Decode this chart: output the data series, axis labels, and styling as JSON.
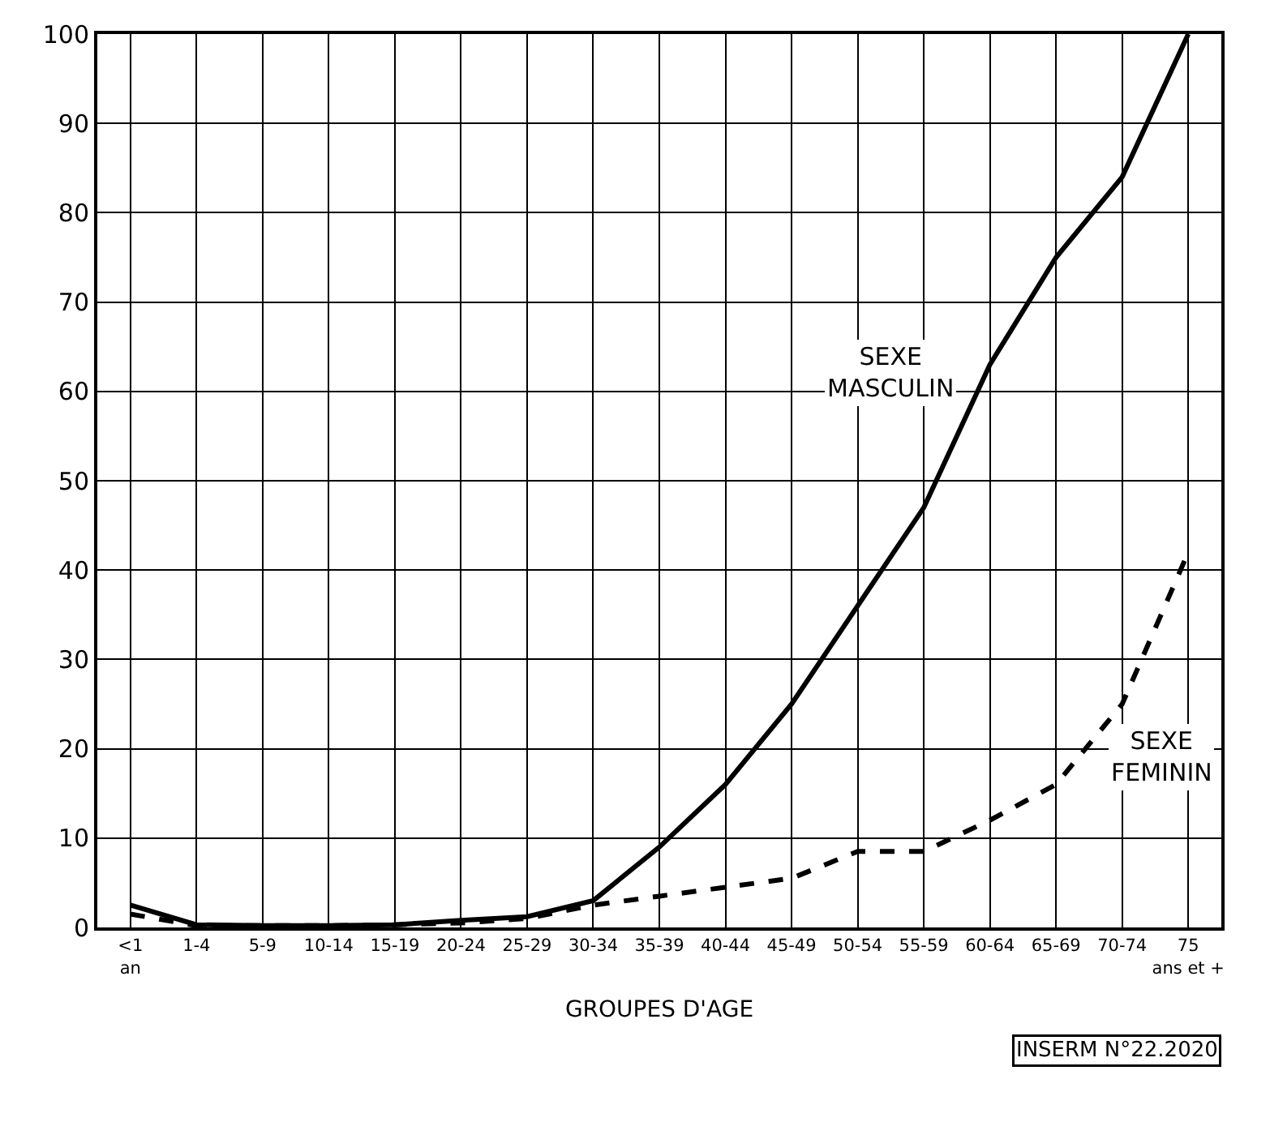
{
  "chart_data": {
    "type": "line",
    "xlabel": "GROUPES D'AGE",
    "categories": [
      "<1 an",
      "1-4",
      "5-9",
      "10-14",
      "15-19",
      "20-24",
      "25-29",
      "30-34",
      "35-39",
      "40-44",
      "45-49",
      "50-54",
      "55-59",
      "60-64",
      "65-69",
      "70-74",
      "75 ans et +"
    ],
    "series": [
      {
        "name": "SEXE MASCULIN",
        "color": "#000000",
        "line_style": "solid",
        "values": [
          2.5,
          0.3,
          0.2,
          0.2,
          0.3,
          0.8,
          1.2,
          3,
          9,
          16,
          25,
          36,
          47,
          63,
          75,
          84,
          100
        ]
      },
      {
        "name": "SEXE FEMININ",
        "color": "#000000",
        "line_style": "dashed",
        "values": [
          1.5,
          0.2,
          0.2,
          0.2,
          0.3,
          0.5,
          1,
          2.5,
          3.5,
          4.5,
          5.5,
          8.5,
          8.5,
          12,
          16,
          25,
          42
        ]
      }
    ],
    "ylim": [
      0,
      100
    ],
    "yticks": [
      0,
      10,
      20,
      30,
      40,
      50,
      60,
      70,
      80,
      90,
      100
    ],
    "grid": true,
    "legend": false,
    "marker": "none",
    "annotations": [
      "INSERM N°22.2020"
    ]
  }
}
